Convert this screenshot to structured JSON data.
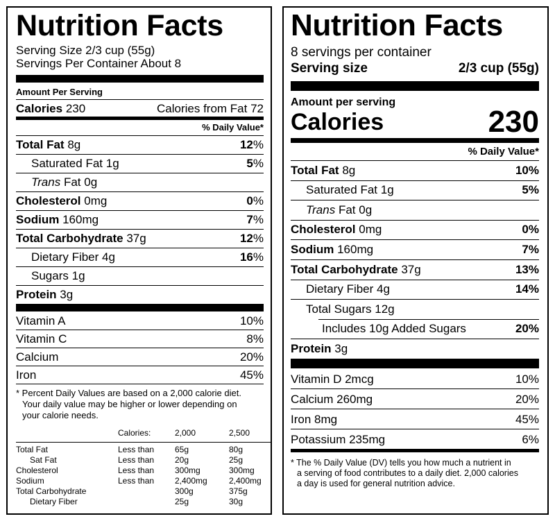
{
  "old_label": {
    "title": "Nutrition Facts",
    "serving_size": "Serving Size 2/3 cup (55g)",
    "servings": "Servings Per Container About 8",
    "amount_per_serving": "Amount Per Serving",
    "calories_label": "Calories",
    "calories_value": "230",
    "calories_from_fat": "Calories from Fat 72",
    "dv_header": "% Daily Value*",
    "nutrients": [
      {
        "name": "Total Fat",
        "amount": "8g",
        "dv": "12",
        "bold": true,
        "indent": 0
      },
      {
        "name": "Saturated Fat",
        "amount": "1g",
        "dv": "5",
        "bold": false,
        "indent": 1
      },
      {
        "name": "Trans",
        "name2": "Fat",
        "amount": "0g",
        "dv": "",
        "bold": false,
        "indent": 1,
        "italic": true
      },
      {
        "name": "Cholesterol",
        "amount": "0mg",
        "dv": "0",
        "bold": true,
        "indent": 0
      },
      {
        "name": "Sodium",
        "amount": "160mg",
        "dv": "7",
        "bold": true,
        "indent": 0
      },
      {
        "name": "Total Carbohydrate",
        "amount": "37g",
        "dv": "12",
        "bold": true,
        "indent": 0
      },
      {
        "name": "Dietary Fiber",
        "amount": "4g",
        "dv": "16",
        "bold": false,
        "indent": 1
      },
      {
        "name": "Sugars",
        "amount": "1g",
        "dv": "",
        "bold": false,
        "indent": 1
      },
      {
        "name": "Protein",
        "amount": "3g",
        "dv": "",
        "bold": true,
        "indent": 0
      }
    ],
    "percent_sign": "%",
    "vitamins": [
      {
        "name": "Vitamin A",
        "dv": "10%"
      },
      {
        "name": "Vitamin C",
        "dv": "8%"
      },
      {
        "name": "Calcium",
        "dv": "20%"
      },
      {
        "name": "Iron",
        "dv": "45%"
      }
    ],
    "footnote_line1": "* Percent Daily Values are based on a 2,000 calorie diet.",
    "footnote_line2": "Your daily value may be higher or lower depending on",
    "footnote_line3": "your calorie needs.",
    "ref_header": [
      "Calories:",
      "2,000",
      "2,500"
    ],
    "ref_rows": [
      [
        "Total Fat",
        "Less than",
        "65g",
        "80g"
      ],
      [
        "Sat Fat",
        "Less than",
        "20g",
        "25g"
      ],
      [
        "Cholesterol",
        "Less than",
        "300mg",
        "300mg"
      ],
      [
        "Sodium",
        "Less than",
        "2,400mg",
        "2,400mg"
      ],
      [
        "Total Carbohydrate",
        "",
        "300g",
        "375g"
      ],
      [
        "Dietary Fiber",
        "",
        "25g",
        "30g"
      ]
    ]
  },
  "new_label": {
    "title": "Nutrition Facts",
    "servings": "8 servings per container",
    "serving_size_label": "Serving size",
    "serving_size_value": "2/3 cup (55g)",
    "amount_per_serving": "Amount per serving",
    "calories_label": "Calories",
    "calories_value": "230",
    "dv_header": "% Daily Value*",
    "nutrients": [
      {
        "name": "Total Fat",
        "amount": "8g",
        "dv": "10%",
        "bold": true,
        "indent": 0
      },
      {
        "name": "Saturated Fat",
        "amount": "1g",
        "dv": "5%",
        "bold": false,
        "indent": 1
      },
      {
        "name": "Trans",
        "name2": "Fat",
        "amount": "0g",
        "dv": "",
        "bold": false,
        "indent": 1,
        "italic": true
      },
      {
        "name": "Cholesterol",
        "amount": "0mg",
        "dv": "0%",
        "bold": true,
        "indent": 0
      },
      {
        "name": "Sodium",
        "amount": "160mg",
        "dv": "7%",
        "bold": true,
        "indent": 0
      },
      {
        "name": "Total Carbohydrate",
        "amount": "37g",
        "dv": "13%",
        "bold": true,
        "indent": 0
      },
      {
        "name": "Dietary Fiber",
        "amount": "4g",
        "dv": "14%",
        "bold": false,
        "indent": 1
      },
      {
        "name": "Total Sugars",
        "amount": "12g",
        "dv": "",
        "bold": false,
        "indent": 1
      },
      {
        "name": "Includes 10g Added Sugars",
        "amount": "",
        "dv": "20%",
        "bold": false,
        "indent": 2
      },
      {
        "name": "Protein",
        "amount": "3g",
        "dv": "",
        "bold": true,
        "indent": 0
      }
    ],
    "vitamins": [
      {
        "name": "Vitamin D 2mcg",
        "dv": "10%"
      },
      {
        "name": "Calcium 260mg",
        "dv": "20%"
      },
      {
        "name": "Iron 8mg",
        "dv": "45%"
      },
      {
        "name": "Potassium 235mg",
        "dv": "6%"
      }
    ],
    "footnote_line1": "* The % Daily Value (DV) tells you how much a nutrient in",
    "footnote_line2": "a serving of food contributes to a daily diet. 2,000 calories",
    "footnote_line3": "a day is used for general nutrition advice."
  }
}
